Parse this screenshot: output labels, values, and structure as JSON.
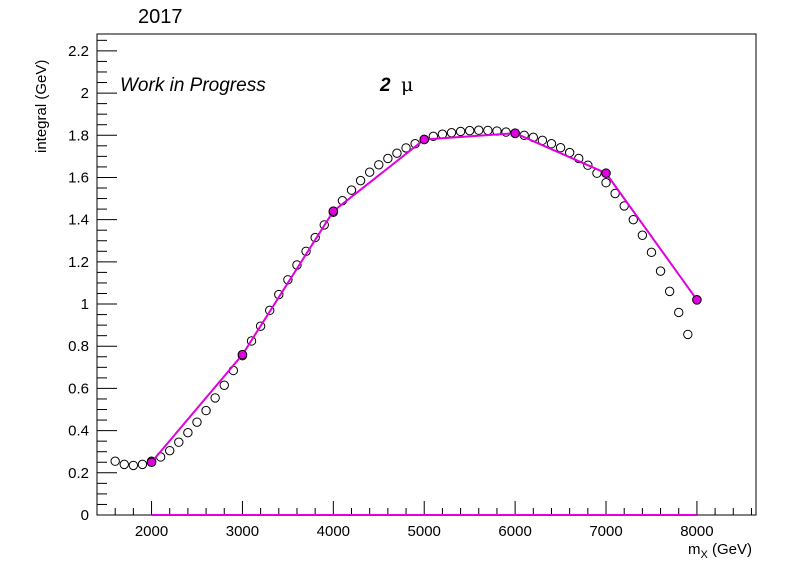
{
  "chart_data": {
    "type": "scatter",
    "title": "2017",
    "xlabel": "m",
    "xlabel_sub": "X",
    "xlabel_unit": " (GeV)",
    "ylabel": "integral (GeV)",
    "annotations": {
      "left": "Work in Progress",
      "count": "2",
      "particle": "μ"
    },
    "xlim": [
      1400,
      8650
    ],
    "ylim": [
      0,
      2.28
    ],
    "xticks": [
      2000,
      3000,
      4000,
      5000,
      6000,
      7000,
      8000
    ],
    "xtick_labels": [
      "2000",
      "3000",
      "4000",
      "5000",
      "6000",
      "7000",
      "8000"
    ],
    "yticks": [
      0,
      0.2,
      0.4,
      0.6,
      0.8,
      1,
      1.2,
      1.4,
      1.6,
      1.8,
      2,
      2.2
    ],
    "ytick_labels": [
      "0",
      "0.2",
      "0.4",
      "0.6",
      "0.8",
      "1",
      "1.2",
      "1.4",
      "1.6",
      "1.8",
      "2",
      "2.2"
    ],
    "grid": false,
    "colors": {
      "fit": "#e000e0",
      "open_marker": "#000000"
    },
    "series": [
      {
        "style": "open-circles",
        "x": [
          1600,
          1700,
          1800,
          1900,
          2000,
          2100,
          2200,
          2300,
          2400,
          2500,
          2600,
          2700,
          2800,
          2900,
          3000,
          3100,
          3200,
          3300,
          3400,
          3500,
          3600,
          3700,
          3800,
          3900,
          4000,
          4100,
          4200,
          4300,
          4400,
          4500,
          4600,
          4700,
          4800,
          4900,
          5000,
          5100,
          5200,
          5300,
          5400,
          5500,
          5600,
          5700,
          5800,
          5900,
          6000,
          6100,
          6200,
          6300,
          6400,
          6500,
          6600,
          6700,
          6800,
          6900,
          7000,
          7100,
          7200,
          7300,
          7400,
          7500,
          7600,
          7700,
          7800,
          7900
        ],
        "y": [
          0.255,
          0.24,
          0.235,
          0.24,
          0.255,
          0.275,
          0.305,
          0.345,
          0.39,
          0.44,
          0.495,
          0.555,
          0.615,
          0.685,
          0.755,
          0.825,
          0.895,
          0.97,
          1.045,
          1.115,
          1.185,
          1.25,
          1.315,
          1.375,
          1.435,
          1.49,
          1.54,
          1.585,
          1.625,
          1.66,
          1.69,
          1.715,
          1.74,
          1.76,
          1.78,
          1.795,
          1.805,
          1.812,
          1.818,
          1.822,
          1.824,
          1.823,
          1.82,
          1.815,
          1.808,
          1.8,
          1.79,
          1.776,
          1.76,
          1.741,
          1.718,
          1.69,
          1.658,
          1.62,
          1.575,
          1.524,
          1.465,
          1.4,
          1.326,
          1.245,
          1.156,
          1.06,
          0.96,
          0.856
        ]
      },
      {
        "style": "filled-circles-line",
        "x": [
          2000,
          3000,
          4000,
          5000,
          6000,
          7000,
          8000
        ],
        "y": [
          0.25,
          0.76,
          1.44,
          1.78,
          1.81,
          1.62,
          1.02
        ]
      },
      {
        "style": "line",
        "x": [
          2000,
          8000
        ],
        "y": [
          0,
          0
        ]
      }
    ]
  }
}
